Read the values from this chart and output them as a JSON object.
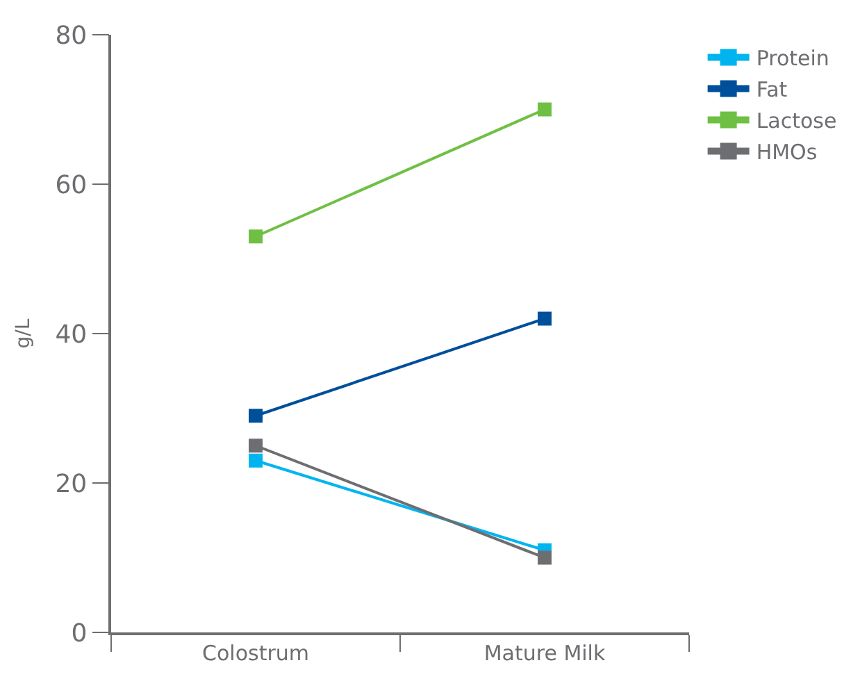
{
  "chart_data": {
    "type": "line",
    "ylabel": "g/L",
    "categories": [
      "Colostrum",
      "Mature Milk"
    ],
    "series": [
      {
        "name": "Protein",
        "color": "#00b5ef",
        "values": [
          23,
          11
        ]
      },
      {
        "name": "Fat",
        "color": "#004f9a",
        "values": [
          29,
          42
        ]
      },
      {
        "name": "Lactose",
        "color": "#6fbf44",
        "values": [
          53,
          70
        ]
      },
      {
        "name": "HMOs",
        "color": "#6d6e71",
        "values": [
          25,
          10
        ]
      }
    ],
    "ylim": [
      0,
      80
    ],
    "yticks": [
      0,
      20,
      40,
      60,
      80
    ],
    "legend": "top right",
    "marker": "square",
    "line_style": "solid"
  }
}
